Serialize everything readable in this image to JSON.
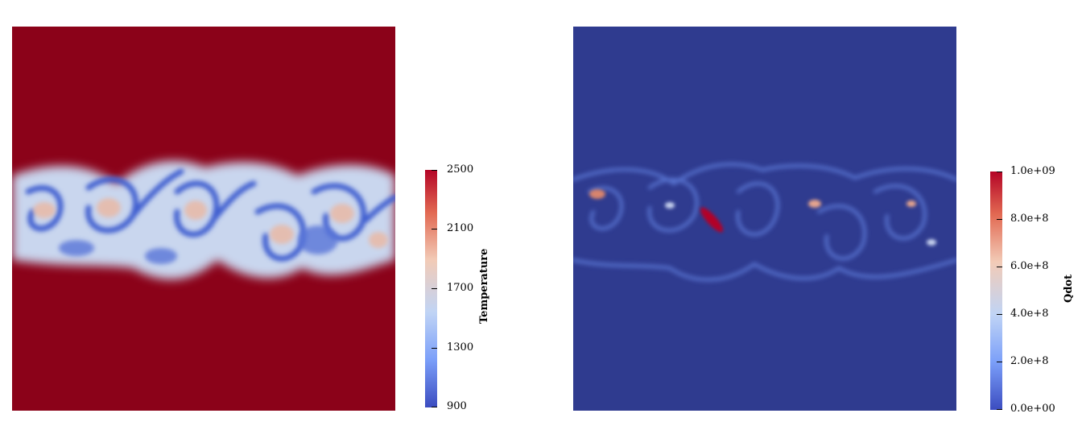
{
  "left_colorbar": {
    "title": "Temperature",
    "ticks": [
      "2500",
      "2100",
      "1700",
      "1300",
      "900"
    ],
    "range": [
      900,
      2500
    ]
  },
  "right_colorbar": {
    "title": "Qdot",
    "ticks": [
      "1.0e+09",
      "8.0e+8",
      "6.0e+8",
      "4.0e+8",
      "2.0e+8",
      "0.0e+00"
    ],
    "range": [
      0,
      1000000000
    ]
  },
  "colors": {
    "hot": "#8b0219",
    "cold": "#3b4cc0",
    "background_right": "#2f3b8f",
    "highlight": "#b40426"
  }
}
